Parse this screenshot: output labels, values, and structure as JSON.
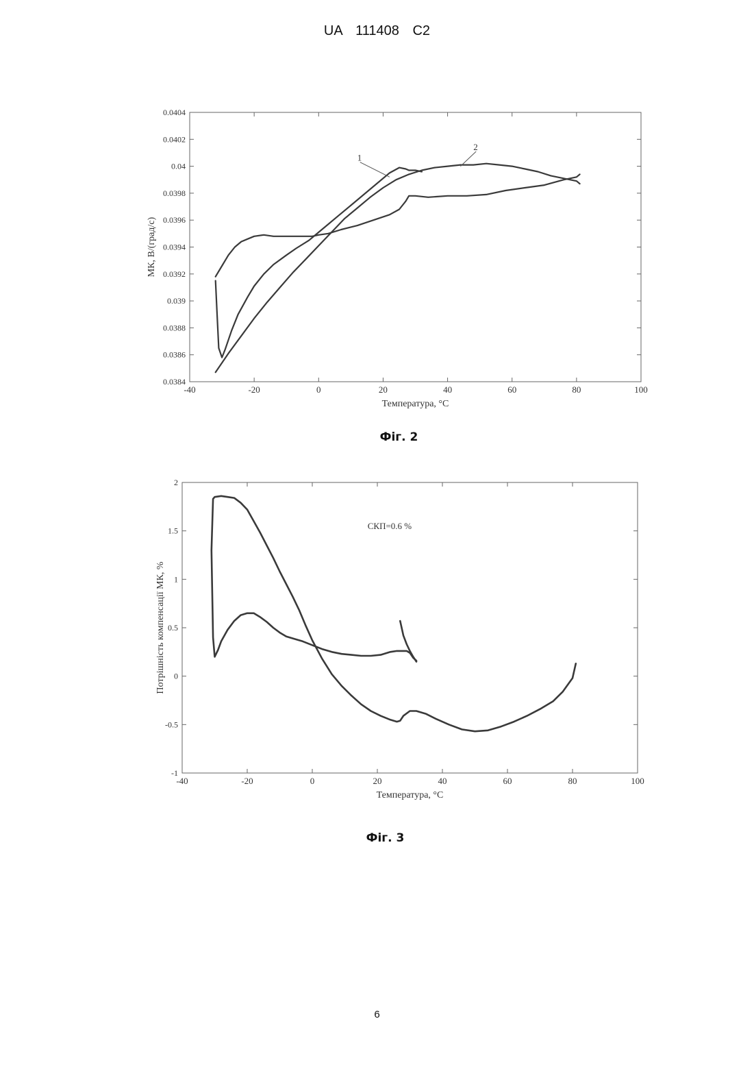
{
  "page": {
    "header": "UA 111408 C2",
    "page_number": "6"
  },
  "chart_data": [
    {
      "id": "fig2",
      "type": "line",
      "caption": "Фіг. 2",
      "xlabel": "Температура, °C",
      "ylabel": "МК, В/(град/с)",
      "xlim": [
        -40,
        100
      ],
      "ylim": [
        0.0384,
        0.0404
      ],
      "xticks": [
        -40,
        -20,
        0,
        20,
        40,
        60,
        80,
        100
      ],
      "xtick_labels": [
        "-40",
        "-20",
        "0",
        "20",
        "40",
        "60",
        "80",
        "100"
      ],
      "yticks": [
        0.0384,
        0.0386,
        0.0388,
        0.039,
        0.0392,
        0.0394,
        0.0396,
        0.0398,
        0.04,
        0.0402,
        0.0404
      ],
      "ytick_labels": [
        "0.0384",
        "0.0386",
        "0.0388",
        "0.039",
        "0.0392",
        "0.0394",
        "0.0396",
        "0.0398",
        "0.04",
        "0.0402",
        "0.0404"
      ],
      "grid": false,
      "annotations": [
        {
          "text": "1",
          "x": 12,
          "y": 0.04004,
          "target_x": 22,
          "target_y": 0.03992
        },
        {
          "text": "2",
          "x": 48,
          "y": 0.04012,
          "target_x": 44,
          "target_y": 0.04
        }
      ],
      "series": [
        {
          "values_x": [
            -32,
            -31.5,
            -31,
            -30,
            -29,
            -27,
            -25,
            -22,
            -20,
            -17,
            -14,
            -10,
            -7,
            -3,
            0,
            3,
            6,
            10,
            14,
            18,
            22,
            25,
            27,
            28,
            30,
            32
          ],
          "values_y": [
            0.03915,
            0.0389,
            0.03865,
            0.03858,
            0.03864,
            0.03878,
            0.0389,
            0.03903,
            0.03911,
            0.0392,
            0.03927,
            0.03934,
            0.03939,
            0.03945,
            0.03951,
            0.03957,
            0.03963,
            0.03971,
            0.03979,
            0.03987,
            0.03995,
            0.03999,
            0.03998,
            0.03997,
            0.03997,
            0.03996
          ]
        },
        {
          "values_x": [
            -32,
            -28,
            -24,
            -20,
            -16,
            -12,
            -8,
            -4,
            0,
            4,
            8,
            12,
            16,
            20,
            24,
            28,
            32,
            36,
            40,
            44,
            48,
            52,
            56,
            60,
            64,
            68,
            72,
            76,
            80,
            81
          ],
          "values_y": [
            0.03847,
            0.03861,
            0.03874,
            0.03887,
            0.03899,
            0.0391,
            0.03921,
            0.03931,
            0.03941,
            0.03951,
            0.03961,
            0.03969,
            0.03977,
            0.03984,
            0.0399,
            0.03994,
            0.03997,
            0.03999,
            0.04,
            0.04001,
            0.04001,
            0.04002,
            0.04001,
            0.04,
            0.03998,
            0.03996,
            0.03993,
            0.03991,
            0.03989,
            0.03987
          ]
        },
        {
          "values_x": [
            -32,
            -30,
            -28,
            -26,
            -24,
            -22,
            -20,
            -17,
            -14,
            -10,
            -6,
            -2,
            0,
            3,
            7,
            12,
            17,
            22,
            25,
            27,
            28,
            30,
            34,
            40,
            46,
            52,
            58,
            64,
            70,
            76,
            80,
            81
          ],
          "values_y": [
            0.03918,
            0.03926,
            0.03934,
            0.0394,
            0.03944,
            0.03946,
            0.03948,
            0.03949,
            0.03948,
            0.03948,
            0.03948,
            0.03948,
            0.03949,
            0.0395,
            0.03953,
            0.03956,
            0.0396,
            0.03964,
            0.03968,
            0.03974,
            0.03978,
            0.03978,
            0.03977,
            0.03978,
            0.03978,
            0.03979,
            0.03982,
            0.03984,
            0.03986,
            0.0399,
            0.03992,
            0.03994
          ]
        }
      ]
    },
    {
      "id": "fig3",
      "type": "line",
      "caption": "Фіг. 3",
      "xlabel": "Температура, °C",
      "ylabel": "Потрішність компенсації МК, %",
      "xlim": [
        -40,
        100
      ],
      "ylim": [
        -1,
        2
      ],
      "xticks": [
        -40,
        -20,
        0,
        20,
        40,
        60,
        80,
        100
      ],
      "xtick_labels": [
        "-40",
        "-20",
        "0",
        "20",
        "40",
        "60",
        "80",
        "100"
      ],
      "yticks": [
        -1,
        -0.5,
        0,
        0.5,
        1,
        1.5,
        2
      ],
      "ytick_labels": [
        "-1",
        "-0.5",
        "0",
        "0.5",
        "1",
        "1.5",
        "2"
      ],
      "grid": false,
      "annotations": [
        {
          "text": "СКП=0.6 %",
          "x": 17,
          "y": 1.52
        }
      ],
      "series": [
        {
          "values_x": [
            -31,
            -30.5,
            -30,
            -29,
            -28,
            -26,
            -24,
            -22,
            -20,
            -18,
            -16,
            -14,
            -12,
            -10,
            -8,
            -5,
            -3,
            0,
            3,
            6,
            9,
            12,
            15,
            18,
            21,
            24,
            26,
            27,
            28,
            29,
            30,
            31,
            32
          ],
          "values_y": [
            1.3,
            0.4,
            0.2,
            0.27,
            0.36,
            0.48,
            0.57,
            0.63,
            0.65,
            0.65,
            0.61,
            0.56,
            0.5,
            0.45,
            0.41,
            0.38,
            0.36,
            0.32,
            0.28,
            0.25,
            0.23,
            0.22,
            0.21,
            0.21,
            0.22,
            0.25,
            0.26,
            0.26,
            0.26,
            0.26,
            0.24,
            0.19,
            0.16
          ]
        },
        {
          "values_x": [
            -31,
            -30.5,
            -30,
            -28,
            -26,
            -24,
            -22,
            -20,
            -18,
            -16,
            -14,
            -12,
            -10,
            -8,
            -6,
            -4,
            -2,
            0,
            3,
            6,
            9,
            12,
            15,
            18,
            21,
            24,
            26,
            27,
            28,
            30,
            32,
            35,
            38,
            42,
            46,
            50,
            54,
            58,
            62,
            66,
            70,
            74,
            77,
            80,
            81
          ],
          "values_y": [
            1.3,
            1.83,
            1.85,
            1.86,
            1.85,
            1.84,
            1.79,
            1.72,
            1.6,
            1.48,
            1.35,
            1.22,
            1.08,
            0.95,
            0.82,
            0.68,
            0.52,
            0.37,
            0.18,
            0.02,
            -0.1,
            -0.2,
            -0.29,
            -0.36,
            -0.41,
            -0.45,
            -0.47,
            -0.46,
            -0.41,
            -0.36,
            -0.36,
            -0.39,
            -0.44,
            -0.5,
            -0.55,
            -0.57,
            -0.56,
            -0.52,
            -0.47,
            -0.41,
            -0.34,
            -0.26,
            -0.16,
            -0.02,
            0.13
          ]
        },
        {
          "values_x": [
            27,
            28,
            29,
            30,
            31,
            32
          ],
          "values_y": [
            0.57,
            0.42,
            0.33,
            0.26,
            0.2,
            0.15
          ]
        }
      ]
    }
  ]
}
